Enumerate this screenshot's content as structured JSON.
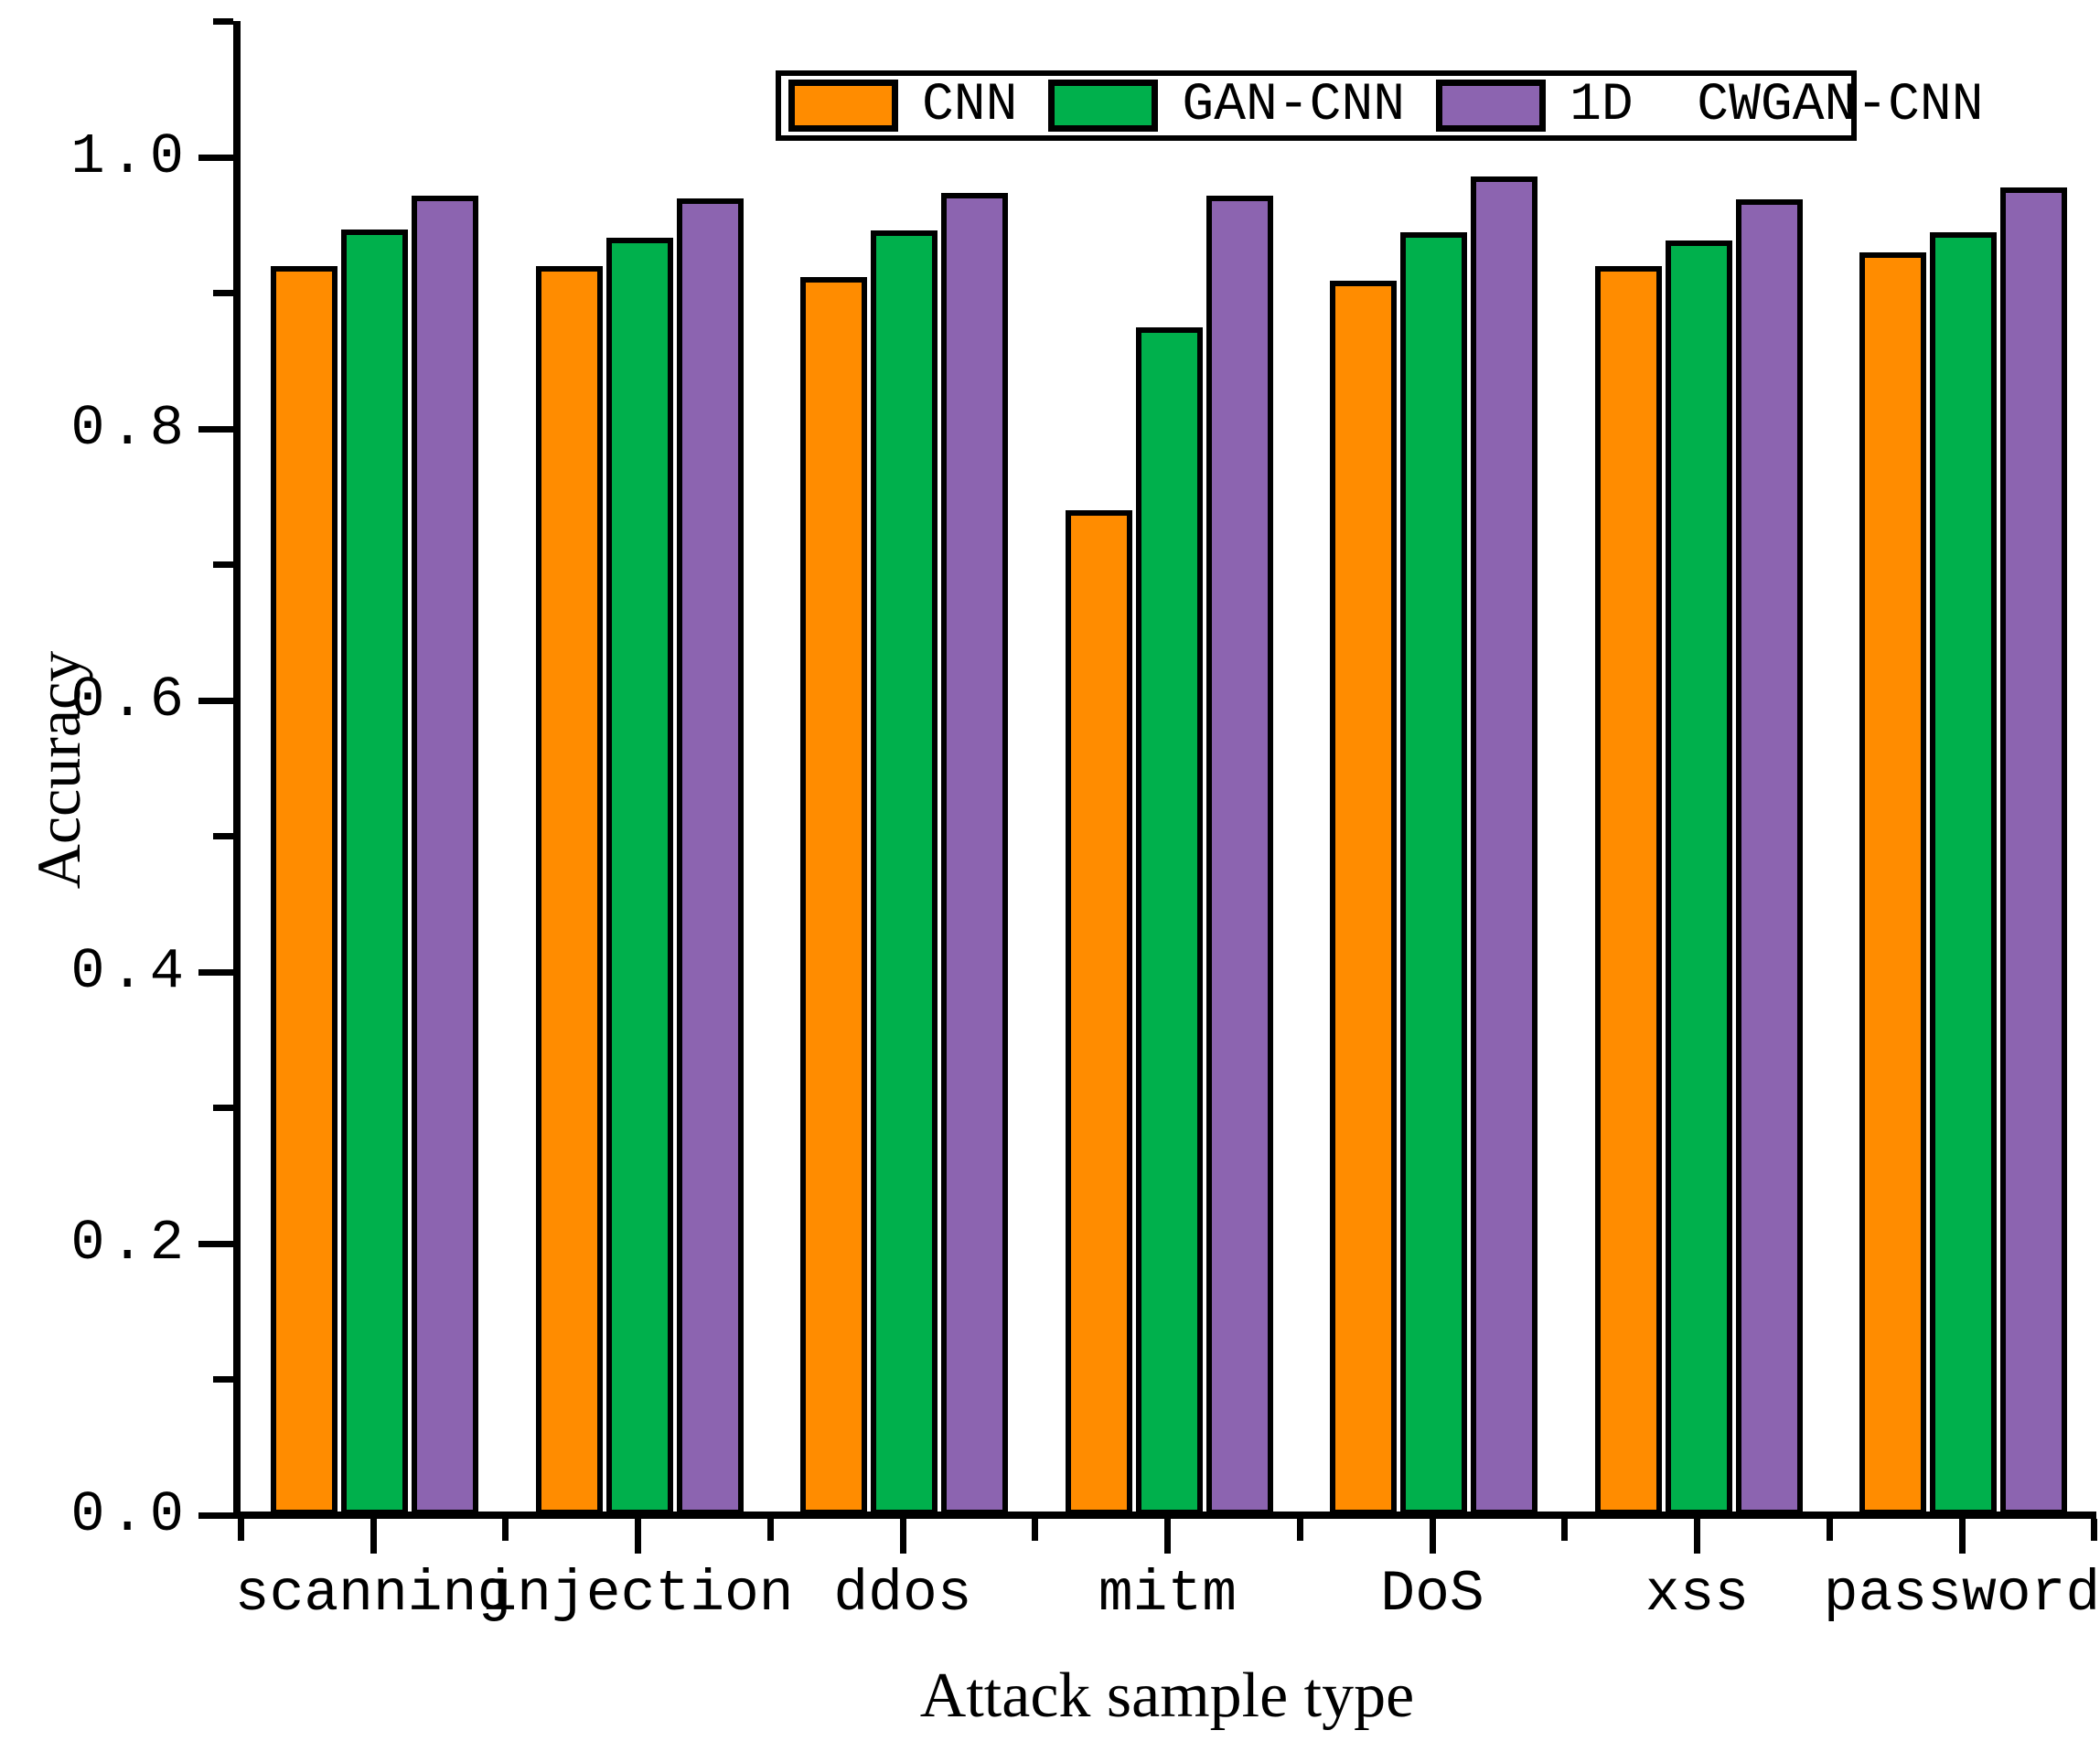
{
  "chart_data": {
    "type": "bar",
    "title": "",
    "xlabel": "Attack sample type",
    "ylabel": "Accuracy",
    "categories": [
      "scanning",
      "injection",
      "ddos",
      "mitm",
      "DoS",
      "xss",
      "password"
    ],
    "series": [
      {
        "name": "CNN",
        "color": "#FF8C00",
        "values": [
          0.92,
          0.92,
          0.912,
          0.74,
          0.909,
          0.92,
          0.93
        ]
      },
      {
        "name": "GAN-CNN",
        "color": "#00B04C",
        "values": [
          0.947,
          0.941,
          0.946,
          0.875,
          0.945,
          0.939,
          0.945
        ]
      },
      {
        "name": "1D CWGAN-CNN",
        "color": "#8C64B0",
        "values": [
          0.972,
          0.97,
          0.974,
          0.972,
          0.986,
          0.969,
          0.978
        ]
      }
    ],
    "ylim": [
      0.0,
      1.1
    ],
    "ytick_labels": [
      "0.0",
      "0.2",
      "0.4",
      "0.6",
      "0.8",
      "1.0"
    ],
    "ytick_values": [
      0.0,
      0.2,
      0.4,
      0.6,
      0.8,
      1.0
    ],
    "yminor_step": 0.1,
    "grid": false,
    "legend_position": "top-center",
    "bar_edge_color": "#000000",
    "background_color": "#ffffff"
  }
}
